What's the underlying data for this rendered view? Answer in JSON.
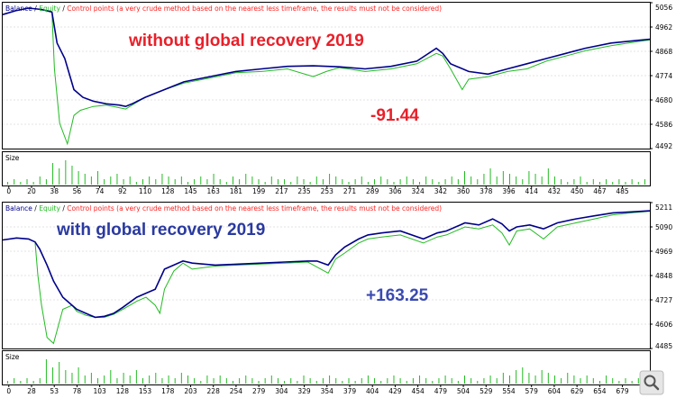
{
  "legend": {
    "balance": "Balance",
    "sep1": " / ",
    "equity": "Equity",
    "sep2": " / ",
    "note": "Control points (a very crude method based on the nearest less timeframe, the results must not be considered)"
  },
  "volume_label": "Size",
  "colors": {
    "balance": "#00008b",
    "equity": "#22bb22",
    "volume": "#22bb22",
    "note": "#ff2222",
    "title_top": "#e8202a",
    "title_bottom": "#2a3aa0",
    "value_top": "#e8202a",
    "value_bottom": "#3a4ab0",
    "grid": "#c8c8c8"
  },
  "chart_data": [
    {
      "type": "line",
      "title": "without global recovery 2019",
      "result_label": "-91.44",
      "series": [
        {
          "name": "Balance",
          "x": [
            0,
            10,
            20,
            30,
            38,
            42,
            48,
            55,
            62,
            70,
            80,
            90,
            95,
            100,
            110,
            125,
            140,
            160,
            180,
            200,
            220,
            240,
            260,
            280,
            300,
            320,
            335,
            340,
            346,
            360,
            375,
            390,
            405,
            420,
            435,
            450,
            470,
            490,
            500
          ],
          "y": [
            5010,
            5025,
            5035,
            5030,
            5020,
            4900,
            4840,
            4720,
            4690,
            4675,
            4665,
            4660,
            4655,
            4665,
            4690,
            4720,
            4750,
            4770,
            4790,
            4800,
            4810,
            4812,
            4808,
            4800,
            4810,
            4830,
            4880,
            4860,
            4820,
            4790,
            4780,
            4800,
            4820,
            4840,
            4860,
            4880,
            4900,
            4910,
            4915
          ]
        },
        {
          "name": "Equity",
          "x": [
            0,
            10,
            20,
            30,
            38,
            40,
            44,
            50,
            55,
            60,
            70,
            80,
            90,
            95,
            100,
            110,
            125,
            140,
            160,
            180,
            200,
            220,
            240,
            250,
            260,
            280,
            300,
            320,
            335,
            340,
            346,
            355,
            360,
            375,
            390,
            405,
            420,
            435,
            450,
            470,
            490,
            500
          ],
          "y": [
            5010,
            5025,
            5035,
            5030,
            5020,
            4800,
            4590,
            4510,
            4620,
            4640,
            4655,
            4660,
            4650,
            4645,
            4660,
            4690,
            4720,
            4745,
            4765,
            4785,
            4790,
            4800,
            4770,
            4790,
            4805,
            4790,
            4800,
            4820,
            4860,
            4850,
            4800,
            4720,
            4760,
            4770,
            4790,
            4800,
            4830,
            4850,
            4870,
            4890,
            4905,
            4912
          ]
        }
      ],
      "volume": [
        1,
        2,
        1,
        2,
        1,
        3,
        2,
        8,
        6,
        9,
        7,
        5,
        4,
        3,
        5,
        2,
        3,
        4,
        2,
        3,
        1,
        2,
        3,
        2,
        4,
        3,
        2,
        3,
        1,
        2,
        3,
        2,
        4,
        2,
        1,
        3,
        2,
        4,
        3,
        2,
        1,
        3,
        2,
        2,
        1,
        3,
        2,
        1,
        3,
        2,
        4,
        3,
        2,
        1,
        2,
        3,
        1,
        2,
        3,
        2,
        1,
        2,
        3,
        2,
        1,
        3,
        2,
        1,
        2,
        3,
        2,
        5,
        3,
        2,
        4,
        6,
        3,
        5,
        4,
        3,
        2,
        5,
        4,
        3,
        6,
        3,
        2,
        1,
        2,
        3,
        1,
        2,
        1,
        2,
        1,
        2,
        1,
        2,
        1,
        2
      ],
      "yticks": [
        "5056",
        "4962",
        "4868",
        "4774",
        "4680",
        "4586",
        "4492"
      ],
      "ylim": [
        4492,
        5056
      ],
      "xticks": [
        "0",
        "20",
        "38",
        "56",
        "74",
        "92",
        "110",
        "128",
        "145",
        "163",
        "181",
        "199",
        "217",
        "235",
        "253",
        "271",
        "289",
        "306",
        "324",
        "342",
        "360",
        "378",
        "396",
        "414",
        "432",
        "450",
        "467",
        "485"
      ],
      "xlim": [
        0,
        500
      ]
    },
    {
      "type": "line",
      "title": "with global recovery 2019",
      "result_label": "+163.25",
      "series": [
        {
          "name": "Balance",
          "x": [
            0,
            15,
            28,
            35,
            40,
            48,
            55,
            65,
            75,
            80,
            90,
            100,
            110,
            120,
            130,
            145,
            155,
            165,
            175,
            185,
            195,
            205,
            230,
            255,
            280,
            305,
            330,
            340,
            352,
            360,
            370,
            385,
            395,
            410,
            430,
            455,
            470,
            480,
            500,
            515,
            530,
            540,
            548,
            556,
            570,
            585,
            600,
            620,
            640,
            660,
            680,
            700
          ],
          "y": [
            5025,
            5035,
            5030,
            5015,
            4980,
            4900,
            4820,
            4740,
            4700,
            4680,
            4660,
            4640,
            4645,
            4660,
            4690,
            4740,
            4760,
            4780,
            4880,
            4900,
            4920,
            4910,
            4900,
            4905,
            4910,
            4915,
            4920,
            4920,
            4900,
            4950,
            4990,
            5030,
            5050,
            5060,
            5070,
            5030,
            5060,
            5070,
            5110,
            5100,
            5130,
            5105,
            5070,
            5090,
            5100,
            5080,
            5110,
            5130,
            5145,
            5160,
            5165,
            5170
          ]
        },
        {
          "name": "Equity",
          "x": [
            0,
            15,
            28,
            35,
            38,
            42,
            48,
            55,
            65,
            75,
            80,
            90,
            100,
            110,
            120,
            130,
            145,
            155,
            165,
            170,
            175,
            185,
            195,
            205,
            230,
            255,
            280,
            305,
            330,
            340,
            352,
            360,
            370,
            385,
            395,
            410,
            430,
            455,
            470,
            480,
            500,
            515,
            530,
            540,
            548,
            556,
            570,
            585,
            600,
            620,
            640,
            660,
            680,
            700
          ],
          "y": [
            5025,
            5035,
            5030,
            5015,
            4850,
            4700,
            4540,
            4510,
            4680,
            4700,
            4670,
            4650,
            4640,
            4640,
            4655,
            4680,
            4720,
            4740,
            4700,
            4660,
            4780,
            4870,
            4910,
            4880,
            4895,
            4900,
            4905,
            4910,
            4915,
            4890,
            4860,
            4930,
            4960,
            5010,
            5030,
            5040,
            5050,
            5010,
            5040,
            5050,
            5090,
            5080,
            5100,
            5060,
            5000,
            5070,
            5080,
            5030,
            5090,
            5110,
            5130,
            5150,
            5160,
            5168
          ]
        }
      ],
      "volume": [
        1,
        2,
        1,
        2,
        1,
        2,
        9,
        6,
        8,
        5,
        4,
        6,
        3,
        4,
        2,
        3,
        5,
        2,
        4,
        3,
        5,
        2,
        3,
        4,
        2,
        3,
        2,
        4,
        3,
        2,
        1,
        3,
        2,
        3,
        2,
        1,
        2,
        3,
        2,
        1,
        2,
        3,
        2,
        1,
        2,
        1,
        3,
        2,
        1,
        2,
        3,
        2,
        1,
        2,
        1,
        2,
        3,
        2,
        1,
        2,
        3,
        2,
        1,
        2,
        3,
        2,
        1,
        2,
        3,
        2,
        1,
        3,
        2,
        1,
        2,
        3,
        2,
        4,
        3,
        5,
        6,
        4,
        3,
        5,
        4,
        3,
        2,
        4,
        3,
        2,
        3,
        2,
        1,
        3,
        2,
        1,
        2,
        1,
        2,
        1
      ],
      "yticks": [
        "5211",
        "5090",
        "4969",
        "4848",
        "4727",
        "4606",
        "4485"
      ],
      "ylim": [
        4485,
        5211
      ],
      "xticks": [
        "0",
        "28",
        "53",
        "78",
        "103",
        "128",
        "153",
        "178",
        "203",
        "228",
        "254",
        "279",
        "304",
        "329",
        "354",
        "379",
        "404",
        "429",
        "454",
        "479",
        "504",
        "529",
        "554",
        "579",
        "604",
        "629",
        "654",
        "679"
      ],
      "xlim": [
        0,
        700
      ]
    }
  ]
}
